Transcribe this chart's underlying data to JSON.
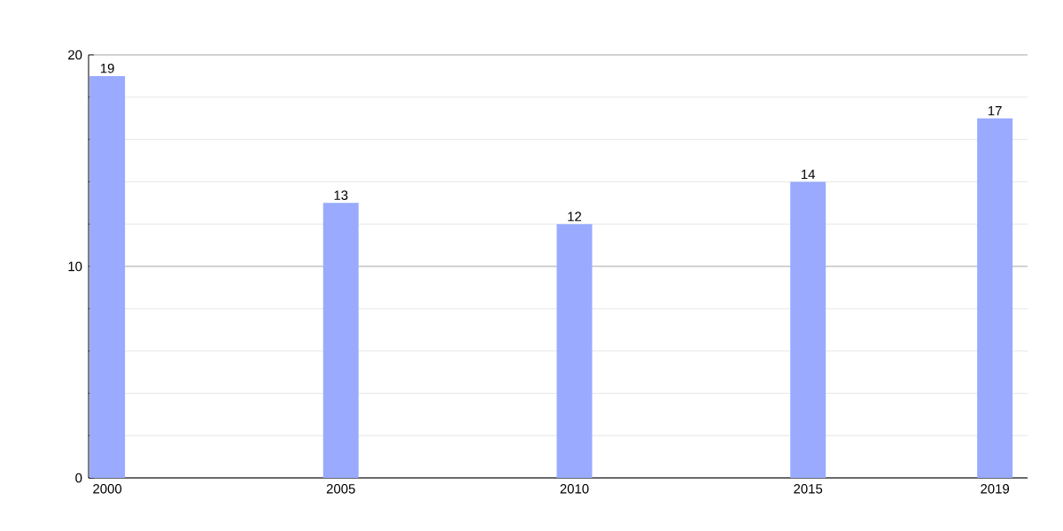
{
  "chart_data": {
    "type": "bar",
    "x": [
      2000,
      2005,
      2010,
      2015,
      2019
    ],
    "values": [
      19,
      13,
      12,
      14,
      17
    ],
    "color": "#99aaff",
    "xlim": [
      1999.6,
      2019.7
    ],
    "xticks": [
      2000,
      2005,
      2010,
      2015,
      2019
    ],
    "ylim": [
      0,
      20
    ],
    "yticks": [
      0,
      10,
      20
    ],
    "grid": "y",
    "data_labels": true
  }
}
